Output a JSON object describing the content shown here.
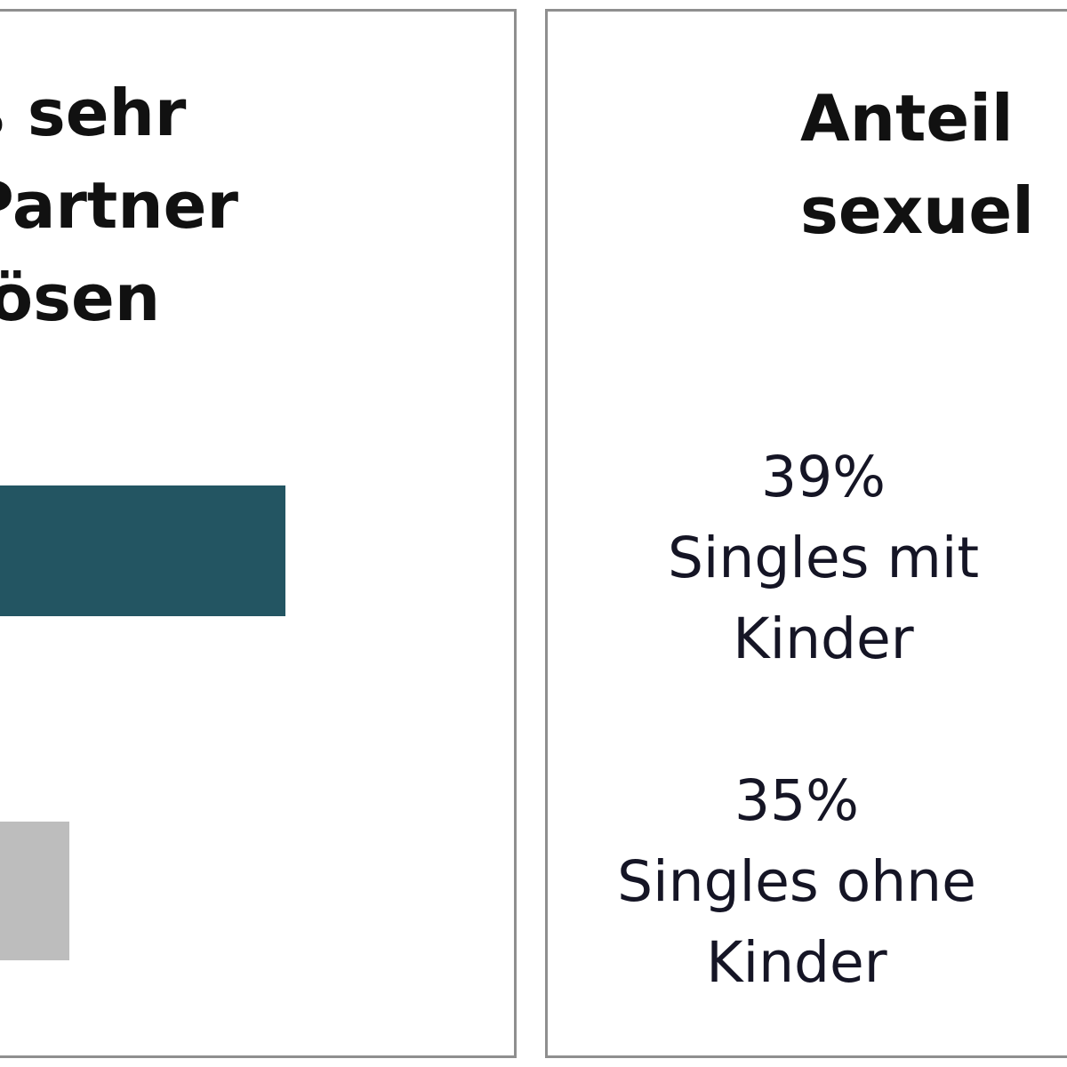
{
  "colors": {
    "bar_primary": "#235562",
    "bar_secondary": "#bdbdbd",
    "border": "#8f8f8f"
  },
  "chart_data": [
    {
      "type": "bar",
      "orientation": "horizontal",
      "title_lines": [
        "s sehr",
        "Partner",
        "lösen"
      ],
      "values_relative": [
        1.0,
        0.32
      ],
      "legend": "none",
      "grid": false
    },
    {
      "type": "table",
      "title_lines": [
        "Anteil",
        "sexuel"
      ],
      "entries": [
        {
          "value": "39%",
          "label_lines": [
            "Singles mit",
            "Kinder"
          ]
        },
        {
          "value": "35%",
          "label_lines": [
            "Singles ohne",
            "Kinder"
          ]
        }
      ]
    }
  ]
}
